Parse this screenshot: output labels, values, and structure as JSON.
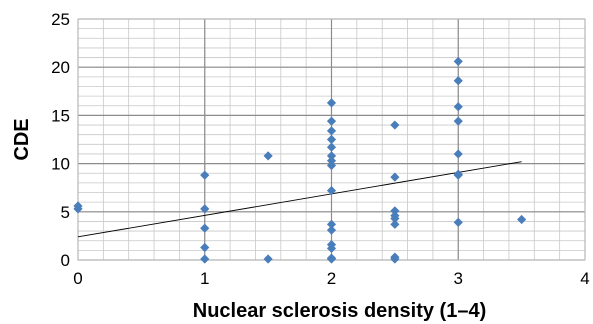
{
  "chart_data": {
    "type": "scatter",
    "title": "",
    "xlabel": "Nuclear sclerosis density (1–4)",
    "ylabel": "CDE",
    "xlim": [
      0,
      4
    ],
    "ylim": [
      0,
      25
    ],
    "x_ticks": [
      0,
      1,
      2,
      3,
      4
    ],
    "y_ticks": [
      0,
      5,
      10,
      15,
      20,
      25
    ],
    "x_tick_labels": [
      "0",
      "1",
      "2",
      "3",
      "4"
    ],
    "y_tick_labels": [
      "0",
      "5",
      "10",
      "15",
      "20",
      "25"
    ],
    "grid": {
      "major": true,
      "minor": true
    },
    "legend": "none",
    "marker": "diamond",
    "colors": {
      "points": "#4a7ebb",
      "trendline": "#000000",
      "grid": "#c8c8c8"
    },
    "points": [
      {
        "x": 0,
        "y": 5.3
      },
      {
        "x": 0,
        "y": 5.6
      },
      {
        "x": 1,
        "y": 8.8
      },
      {
        "x": 1,
        "y": 5.3
      },
      {
        "x": 1,
        "y": 3.3
      },
      {
        "x": 1,
        "y": 1.3
      },
      {
        "x": 1,
        "y": 0.1
      },
      {
        "x": 1.5,
        "y": 10.8
      },
      {
        "x": 1.5,
        "y": 0.1
      },
      {
        "x": 2,
        "y": 16.3
      },
      {
        "x": 2,
        "y": 14.4
      },
      {
        "x": 2,
        "y": 13.4
      },
      {
        "x": 2,
        "y": 12.5
      },
      {
        "x": 2,
        "y": 11.7
      },
      {
        "x": 2,
        "y": 10.8
      },
      {
        "x": 2,
        "y": 10.3
      },
      {
        "x": 2,
        "y": 9.8
      },
      {
        "x": 2,
        "y": 7.2
      },
      {
        "x": 2,
        "y": 3.7
      },
      {
        "x": 2,
        "y": 3.1
      },
      {
        "x": 2,
        "y": 1.6
      },
      {
        "x": 2,
        "y": 1.2
      },
      {
        "x": 2,
        "y": 0.2
      },
      {
        "x": 2,
        "y": 0.1
      },
      {
        "x": 2.5,
        "y": 14.0
      },
      {
        "x": 2.5,
        "y": 8.6
      },
      {
        "x": 2.5,
        "y": 5.1
      },
      {
        "x": 2.5,
        "y": 4.6
      },
      {
        "x": 2.5,
        "y": 4.3
      },
      {
        "x": 2.5,
        "y": 3.7
      },
      {
        "x": 2.5,
        "y": 0.3
      },
      {
        "x": 2.5,
        "y": 0.1
      },
      {
        "x": 3,
        "y": 20.6
      },
      {
        "x": 3,
        "y": 18.6
      },
      {
        "x": 3,
        "y": 15.9
      },
      {
        "x": 3,
        "y": 14.4
      },
      {
        "x": 3,
        "y": 11.0
      },
      {
        "x": 3,
        "y": 8.9
      },
      {
        "x": 3,
        "y": 8.8
      },
      {
        "x": 3,
        "y": 3.9
      },
      {
        "x": 3.5,
        "y": 4.2
      }
    ],
    "trendline": {
      "type": "linear",
      "from": {
        "x": 0,
        "y": 2.4
      },
      "to": {
        "x": 3.5,
        "y": 10.2
      }
    }
  }
}
